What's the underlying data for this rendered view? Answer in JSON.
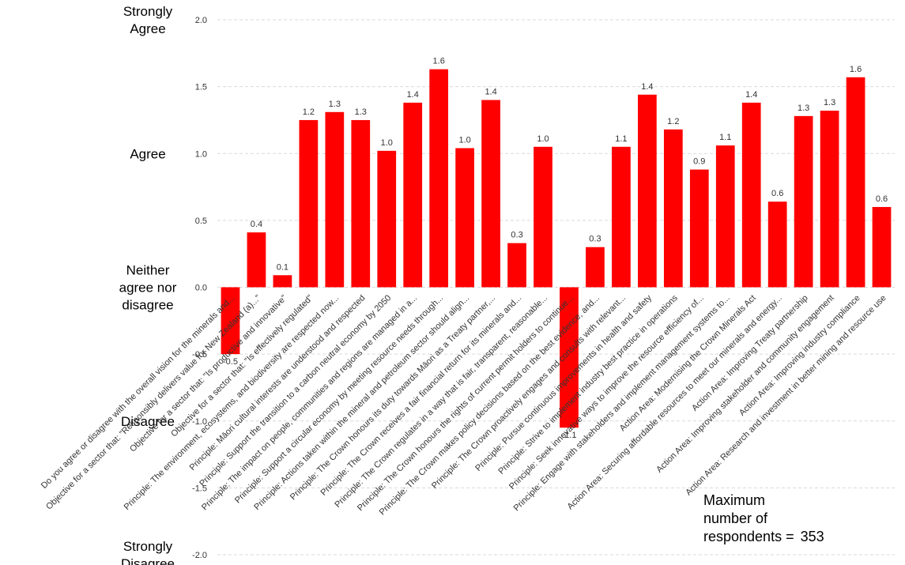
{
  "chart_data": {
    "type": "bar",
    "ylim": [
      -2.0,
      2.0
    ],
    "yticks": [
      "2.0",
      "1.5",
      "1.0",
      "0.5",
      "0.0",
      "-0.5",
      "-1.0",
      "-1.5",
      "-2.0"
    ],
    "ytick_values": [
      2.0,
      1.5,
      1.0,
      0.5,
      0.0,
      -0.5,
      -1.0,
      -1.5,
      -2.0
    ],
    "grid": true,
    "bar_color": "#ff0000",
    "scale_labels": [
      {
        "text": "Strongly\nAgree",
        "value": 2.0
      },
      {
        "text": "Agree",
        "value": 1.0
      },
      {
        "text": "Neither\nagree nor\ndisagree",
        "value": 0.0
      },
      {
        "text": "Disagree",
        "value": -1.0
      },
      {
        "text": "Strongly\nDisagree",
        "value": -2.0
      }
    ],
    "categories": [
      "Do you agree or disagree with the overall vision for the minerals and...",
      "Objective for a sector that: \"Responsibly delivers value for New Zealand (a)...\"",
      "Objective for a sector that: \"Is productive and innovative\"",
      "Objective for a sector that: \"Is effectively regulated\"",
      "Principle: The environment, ecosystems, and biodiversity are respected now...",
      "Principle: Māori cultural interests are understood and respected",
      "Principle: Support the transition to a carbon neutral economy by 2050",
      "Principle: The impact on people, communities and regions are managed in a...",
      "Principle: Support a circular economy by meeting resource needs through...",
      "Principle: Actions taken within the mineral and petroleum sector should align...",
      "Principle: The Crown honours its duty towards Māori as a Treaty partner,...",
      "Principle: The Crown receives a fair financial return for its minerals and...",
      "Principle: The Crown regulates in a way that is fair, transparent, reasonable...",
      "Principle: The Crown honours the rights of current permit holders to continue...",
      "Principle: The Crown makes policy decisions based on the best evidence, and...",
      "Principle: The Crown proactively engages and consults with relevant...",
      "Principle: Pursue continuous improvements in health and safety",
      "Principle: Strive to implement industry best practice in operations",
      "Principle: Seek innovative ways to improve the resource efficiency of...",
      "Principle: Engage with stakeholders and implement management systems to...",
      "Action Area: Modernising the Crown Minerals Act",
      "Action Area: Securing affordable resources to meet our minerals and energy...",
      "Action Area: Improving Treaty partnership",
      "Action Area: Improving stakeholder and community engagement",
      "Action Area: Improving industry compliance",
      "Action Area: Research and investment in better mining and resource use"
    ],
    "values": [
      -0.5,
      0.41,
      0.09,
      1.25,
      1.31,
      1.25,
      1.02,
      1.38,
      1.63,
      1.04,
      1.4,
      0.33,
      1.05,
      -1.05,
      0.3,
      1.05,
      1.44,
      1.18,
      0.88,
      1.06,
      1.38,
      0.64,
      1.28,
      1.32,
      1.57,
      0.6
    ],
    "data_labels": [
      "-0.5",
      "0.4",
      "0.1",
      "1.2",
      "1.3",
      "1.3",
      "1.0",
      "1.4",
      "1.6",
      "1.0",
      "1.4",
      "0.3",
      "1.0",
      "-1.1",
      "0.3",
      "1.1",
      "1.4",
      "1.2",
      "0.9",
      "1.1",
      "1.4",
      "0.6",
      "1.3",
      "1.3",
      "1.6",
      "0.6"
    ]
  },
  "note": {
    "lines": [
      "Maximum",
      "number of",
      "respondents ="
    ],
    "value": "353"
  }
}
